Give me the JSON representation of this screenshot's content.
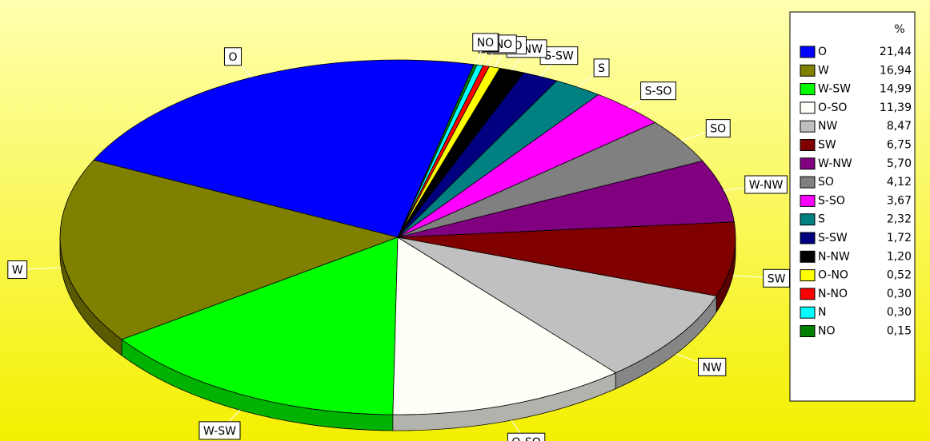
{
  "chart_data": {
    "type": "pie3d",
    "legend_title": "%",
    "categories": [
      "O",
      "W",
      "W-SW",
      "O-SO",
      "NW",
      "SW",
      "W-NW",
      "SO",
      "S-SO",
      "S",
      "S-SW",
      "N-NW",
      "O-NO",
      "N-NO",
      "N",
      "NO"
    ],
    "values": [
      21.44,
      16.94,
      14.99,
      11.39,
      8.47,
      6.75,
      5.7,
      4.12,
      3.67,
      2.32,
      1.72,
      1.2,
      0.52,
      0.3,
      0.3,
      0.15
    ],
    "value_labels": [
      "21,44",
      "16,94",
      "14,99",
      "11,39",
      "8,47",
      "6,75",
      "5,70",
      "4,12",
      "3,67",
      "2,32",
      "1,72",
      "1,20",
      "0,52",
      "0,30",
      "0,30",
      "0,15"
    ],
    "colors": [
      "#0000ff",
      "#808000",
      "#00ff00",
      "#fffff8",
      "#c0c0c0",
      "#800000",
      "#800080",
      "#808080",
      "#ff00ff",
      "#008080",
      "#000080",
      "#000000",
      "#ffff00",
      "#ff0000",
      "#00ffff",
      "#008000"
    ],
    "legend": "right"
  }
}
